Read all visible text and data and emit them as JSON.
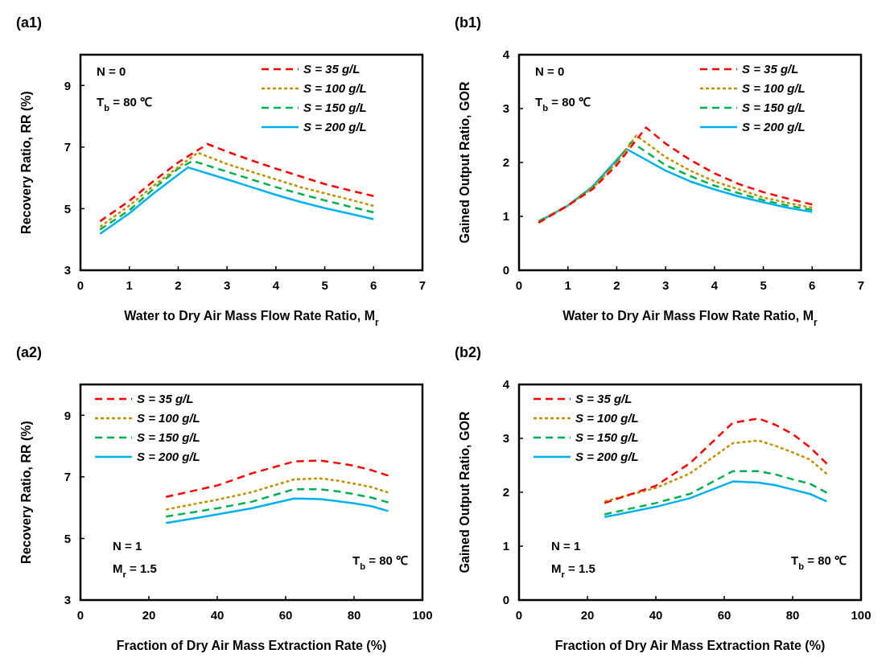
{
  "chart_data": [
    {
      "type": "line",
      "title": "(a1)",
      "xlabel": "Water to Dry Air Mass Flow Rate Ratio, M$_{r}$",
      "ylabel": "Recovery Ratio, RR (%)",
      "xlim": [
        0,
        7
      ],
      "xticks": [
        0,
        1,
        2,
        3,
        4,
        5,
        6,
        7
      ],
      "ylim": [
        3,
        10
      ],
      "yticks": [
        3,
        5,
        7,
        9
      ],
      "legend": "top right",
      "grid": false,
      "annotations": [
        "N = 0",
        "T$_{b}$ = 80 ℃"
      ],
      "series": [
        {
          "name": "S = 35 g/L",
          "color": "#ff0000",
          "line_style": "dashed",
          "x": [
            0.4,
            1,
            1.5,
            2,
            2.6,
            3,
            3.5,
            4,
            4.5,
            5,
            5.5,
            6
          ],
          "values": [
            4.59,
            5.25,
            5.9,
            6.5,
            7.1,
            6.85,
            6.57,
            6.3,
            6.05,
            5.8,
            5.6,
            5.41
          ]
        },
        {
          "name": "S = 100 g/L",
          "color": "#bf9000",
          "line_style": "dotted",
          "x": [
            0.4,
            1,
            1.5,
            2,
            2.4,
            3,
            3.5,
            4,
            4.5,
            5,
            5.5,
            6
          ],
          "values": [
            4.41,
            5.1,
            5.75,
            6.35,
            6.82,
            6.45,
            6.2,
            5.95,
            5.7,
            5.5,
            5.3,
            5.09
          ]
        },
        {
          "name": "S = 150 g/L",
          "color": "#00b050",
          "line_style": "dashed",
          "x": [
            0.4,
            1,
            1.5,
            2,
            2.3,
            3,
            3.5,
            4,
            4.5,
            5,
            5.5,
            6
          ],
          "values": [
            4.32,
            4.95,
            5.65,
            6.3,
            6.55,
            6.2,
            5.95,
            5.7,
            5.48,
            5.27,
            5.07,
            4.88
          ]
        },
        {
          "name": "S = 200 g/L",
          "color": "#00b0f0",
          "line_style": "solid",
          "x": [
            0.4,
            1,
            1.5,
            2,
            2.2,
            3,
            3.5,
            4,
            4.5,
            5,
            5.5,
            6
          ],
          "values": [
            4.18,
            4.85,
            5.5,
            6.1,
            6.34,
            5.95,
            5.7,
            5.45,
            5.22,
            5.02,
            4.84,
            4.66
          ]
        }
      ]
    },
    {
      "type": "line",
      "title": "(b1)",
      "xlabel": "Water to Dry Air Mass Flow Rate Ratio, M$_{r}$",
      "ylabel": "Gained Output Ratio, GOR",
      "xlim": [
        0,
        7
      ],
      "xticks": [
        0,
        1,
        2,
        3,
        4,
        5,
        6,
        7
      ],
      "ylim": [
        0,
        4
      ],
      "yticks": [
        0,
        1,
        2,
        3,
        4
      ],
      "legend": "top right",
      "grid": false,
      "annotations": [
        "N = 0",
        "T$_{b}$ = 80 ℃"
      ],
      "series": [
        {
          "name": "S = 35 g/L",
          "color": "#ff0000",
          "line_style": "dashed",
          "x": [
            0.4,
            1,
            1.5,
            2,
            2.6,
            3,
            3.5,
            4,
            4.5,
            5,
            5.5,
            6
          ],
          "values": [
            0.88,
            1.2,
            1.5,
            1.95,
            2.65,
            2.35,
            2.05,
            1.8,
            1.6,
            1.45,
            1.33,
            1.22
          ]
        },
        {
          "name": "S = 100 g/L",
          "color": "#bf9000",
          "line_style": "dotted",
          "x": [
            0.4,
            1,
            1.5,
            2,
            2.4,
            3,
            3.5,
            4,
            4.5,
            5,
            5.5,
            6
          ],
          "values": [
            0.89,
            1.2,
            1.52,
            2.0,
            2.5,
            2.1,
            1.85,
            1.65,
            1.5,
            1.35,
            1.25,
            1.16
          ]
        },
        {
          "name": "S = 150 g/L",
          "color": "#00b050",
          "line_style": "dashed",
          "x": [
            0.4,
            1,
            1.5,
            2,
            2.3,
            3,
            3.5,
            4,
            4.5,
            5,
            5.5,
            6
          ],
          "values": [
            0.91,
            1.2,
            1.54,
            2.02,
            2.38,
            1.95,
            1.75,
            1.57,
            1.43,
            1.3,
            1.2,
            1.12
          ]
        },
        {
          "name": "S = 200 g/L",
          "color": "#00b0f0",
          "line_style": "solid",
          "x": [
            0.4,
            1,
            1.5,
            2,
            2.2,
            3,
            3.5,
            4,
            4.5,
            5,
            5.5,
            6
          ],
          "values": [
            0.9,
            1.2,
            1.55,
            2.05,
            2.25,
            1.85,
            1.65,
            1.5,
            1.37,
            1.26,
            1.16,
            1.08
          ]
        }
      ]
    },
    {
      "type": "line",
      "title": "(a2)",
      "xlabel": "Fraction of Dry Air Mass Extraction Rate (%)",
      "ylabel": "Recovery Ratio, RR (%)",
      "xlim": [
        0,
        100
      ],
      "xticks": [
        0,
        20,
        40,
        60,
        80,
        100
      ],
      "ylim": [
        3,
        10
      ],
      "yticks": [
        3,
        5,
        7,
        9
      ],
      "legend": "top left",
      "grid": false,
      "annotations": [
        "N = 1",
        "M$_{r}$ = 1.5",
        "T$_{b}$ = 80 ℃"
      ],
      "series": [
        {
          "name": "S = 35 g/L",
          "color": "#ff0000",
          "line_style": "dashed",
          "x": [
            25,
            40,
            50,
            62.5,
            70,
            75,
            80,
            85,
            90
          ],
          "values": [
            6.35,
            6.72,
            7.11,
            7.5,
            7.53,
            7.45,
            7.36,
            7.22,
            7.04
          ]
        },
        {
          "name": "S = 100 g/L",
          "color": "#bf9000",
          "line_style": "dotted",
          "x": [
            25,
            40,
            50,
            62.5,
            70,
            75,
            80,
            85,
            90
          ],
          "values": [
            5.94,
            6.26,
            6.5,
            6.92,
            6.95,
            6.88,
            6.78,
            6.67,
            6.49
          ]
        },
        {
          "name": "S = 150 g/L",
          "color": "#00b050",
          "line_style": "dashed",
          "x": [
            25,
            40,
            50,
            62.5,
            70,
            75,
            80,
            85,
            90
          ],
          "values": [
            5.71,
            5.98,
            6.19,
            6.6,
            6.6,
            6.53,
            6.44,
            6.33,
            6.17
          ]
        },
        {
          "name": "S = 200 g/L",
          "color": "#00b0f0",
          "line_style": "solid",
          "x": [
            25,
            40,
            50,
            62.5,
            70,
            75,
            80,
            85,
            90
          ],
          "values": [
            5.5,
            5.78,
            5.98,
            6.3,
            6.28,
            6.21,
            6.14,
            6.05,
            5.89
          ]
        }
      ]
    },
    {
      "type": "line",
      "title": "(b2)",
      "xlabel": "Fraction of Dry Air Mass Extraction Rate (%)",
      "ylabel": "Gained Output Ratio, GOR",
      "xlim": [
        0,
        100
      ],
      "xticks": [
        0,
        20,
        40,
        60,
        80,
        100
      ],
      "ylim": [
        0,
        4
      ],
      "yticks": [
        0,
        1,
        2,
        3,
        4
      ],
      "legend": "top left",
      "grid": false,
      "annotations": [
        "N = 1",
        "M$_{r}$ = 1.5",
        "T$_{b}$ = 80 ℃"
      ],
      "series": [
        {
          "name": "S = 35 g/L",
          "color": "#ff0000",
          "line_style": "dashed",
          "x": [
            25,
            40,
            50,
            62.5,
            70,
            75,
            80,
            85,
            90
          ],
          "values": [
            1.8,
            2.12,
            2.54,
            3.29,
            3.37,
            3.25,
            3.08,
            2.84,
            2.53
          ]
        },
        {
          "name": "S = 100 g/L",
          "color": "#bf9000",
          "line_style": "dotted",
          "x": [
            25,
            40,
            50,
            62.5,
            70,
            75,
            80,
            85,
            90
          ],
          "values": [
            1.83,
            2.08,
            2.35,
            2.91,
            2.96,
            2.86,
            2.74,
            2.61,
            2.34
          ]
        },
        {
          "name": "S = 150 g/L",
          "color": "#00b050",
          "line_style": "dashed",
          "x": [
            25,
            40,
            50,
            62.5,
            70,
            75,
            80,
            85,
            90
          ],
          "values": [
            1.59,
            1.8,
            1.97,
            2.39,
            2.39,
            2.33,
            2.24,
            2.16,
            1.99
          ]
        },
        {
          "name": "S = 200 g/L",
          "color": "#00b0f0",
          "line_style": "solid",
          "x": [
            25,
            40,
            50,
            62.5,
            70,
            75,
            80,
            85,
            90
          ],
          "values": [
            1.54,
            1.73,
            1.89,
            2.2,
            2.18,
            2.13,
            2.05,
            1.97,
            1.83
          ]
        }
      ]
    }
  ]
}
